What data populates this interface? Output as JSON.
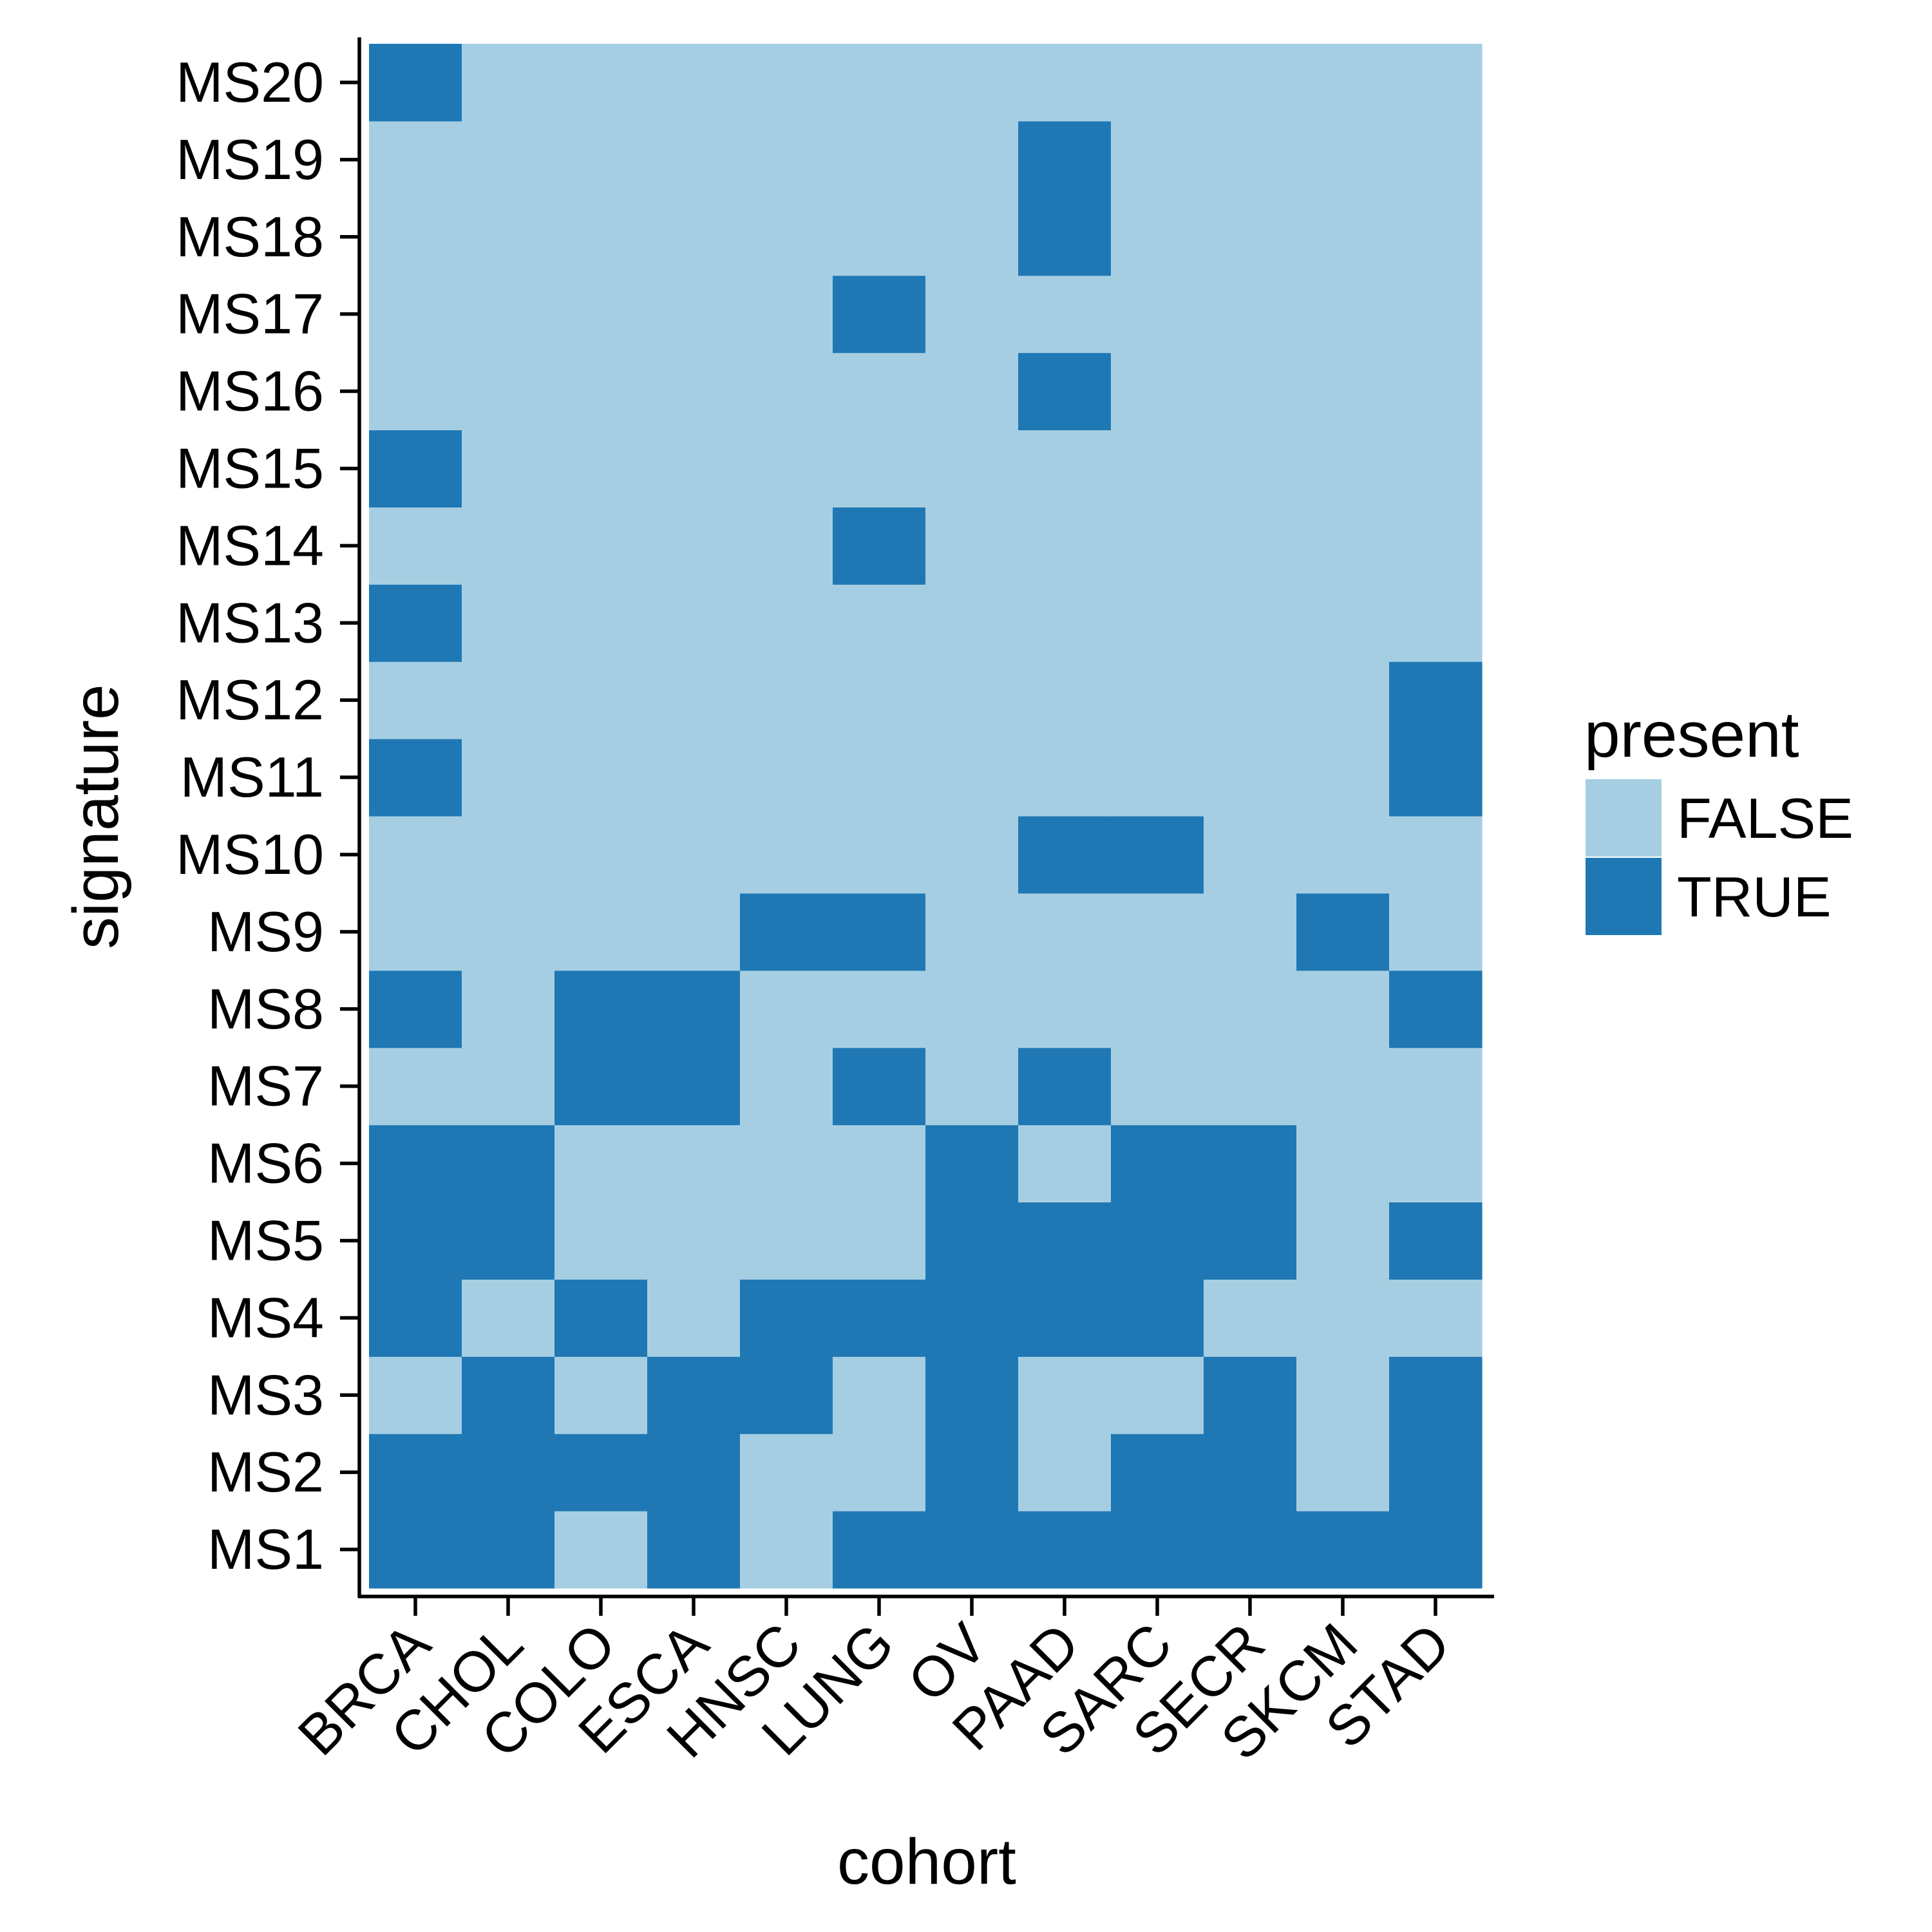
{
  "chart_data": {
    "type": "heatmap",
    "xlabel": "cohort",
    "ylabel": "signature",
    "x_categories": [
      "BRCA",
      "CHOL",
      "COLO",
      "ESCA",
      "HNSC",
      "LUNG",
      "OV",
      "PAAD",
      "SARC",
      "SECR",
      "SKCM",
      "STAD"
    ],
    "y_categories": [
      "MS1",
      "MS2",
      "MS3",
      "MS4",
      "MS5",
      "MS6",
      "MS7",
      "MS8",
      "MS9",
      "MS10",
      "MS11",
      "MS12",
      "MS13",
      "MS14",
      "MS15",
      "MS16",
      "MS17",
      "MS18",
      "MS19",
      "MS20"
    ],
    "legend": {
      "title": "present",
      "position": "right",
      "entries": [
        {
          "label": "FALSE",
          "color": "#a6cee3"
        },
        {
          "label": "TRUE",
          "color": "#1f78b4"
        }
      ]
    },
    "values_by_signature": {
      "MS1": [
        1,
        1,
        0,
        1,
        0,
        1,
        1,
        1,
        1,
        1,
        1,
        1
      ],
      "MS2": [
        1,
        1,
        1,
        1,
        0,
        0,
        1,
        0,
        1,
        1,
        0,
        1
      ],
      "MS3": [
        0,
        1,
        0,
        1,
        1,
        0,
        1,
        0,
        0,
        1,
        0,
        1
      ],
      "MS4": [
        1,
        0,
        1,
        0,
        1,
        1,
        1,
        1,
        1,
        0,
        0,
        0
      ],
      "MS5": [
        1,
        1,
        0,
        0,
        0,
        0,
        1,
        1,
        1,
        1,
        0,
        1
      ],
      "MS6": [
        1,
        1,
        0,
        0,
        0,
        0,
        1,
        0,
        1,
        1,
        0,
        0
      ],
      "MS7": [
        0,
        0,
        1,
        1,
        0,
        1,
        0,
        1,
        0,
        0,
        0,
        0
      ],
      "MS8": [
        1,
        0,
        1,
        1,
        0,
        0,
        0,
        0,
        0,
        0,
        0,
        1
      ],
      "MS9": [
        0,
        0,
        0,
        0,
        1,
        1,
        0,
        0,
        0,
        0,
        1,
        0
      ],
      "MS10": [
        0,
        0,
        0,
        0,
        0,
        0,
        0,
        1,
        1,
        0,
        0,
        0
      ],
      "MS11": [
        1,
        0,
        0,
        0,
        0,
        0,
        0,
        0,
        0,
        0,
        0,
        1
      ],
      "MS12": [
        0,
        0,
        0,
        0,
        0,
        0,
        0,
        0,
        0,
        0,
        0,
        1
      ],
      "MS13": [
        1,
        0,
        0,
        0,
        0,
        0,
        0,
        0,
        0,
        0,
        0,
        0
      ],
      "MS14": [
        0,
        0,
        0,
        0,
        0,
        1,
        0,
        0,
        0,
        0,
        0,
        0
      ],
      "MS15": [
        1,
        0,
        0,
        0,
        0,
        0,
        0,
        0,
        0,
        0,
        0,
        0
      ],
      "MS16": [
        0,
        0,
        0,
        0,
        0,
        0,
        0,
        1,
        0,
        0,
        0,
        0
      ],
      "MS17": [
        0,
        0,
        0,
        0,
        0,
        1,
        0,
        0,
        0,
        0,
        0,
        0
      ],
      "MS18": [
        0,
        0,
        0,
        0,
        0,
        0,
        0,
        1,
        0,
        0,
        0,
        0
      ],
      "MS19": [
        0,
        0,
        0,
        0,
        0,
        0,
        0,
        1,
        0,
        0,
        0,
        0
      ],
      "MS20": [
        1,
        0,
        0,
        0,
        0,
        0,
        0,
        0,
        0,
        0,
        0,
        0
      ]
    },
    "grid": false
  }
}
